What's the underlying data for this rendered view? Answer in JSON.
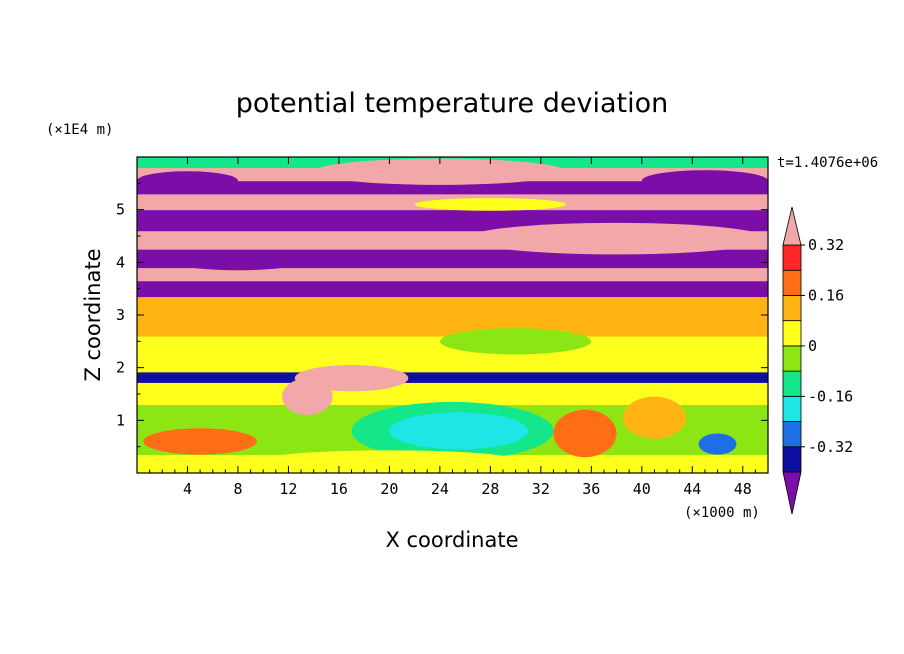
{
  "chart_data": {
    "type": "heatmap",
    "title": "potential temperature deviation",
    "xlabel": "X coordinate",
    "ylabel": "Z coordinate",
    "x_unit": "(×1000 m)",
    "y_unit": "(×1E4 m)",
    "time_label": "t=1.4076e+06",
    "xlim": [
      0,
      50
    ],
    "ylim": [
      0,
      6
    ],
    "x_ticks": [
      "4",
      "8",
      "12",
      "16",
      "20",
      "24",
      "28",
      "32",
      "36",
      "40",
      "44",
      "48"
    ],
    "y_ticks": [
      "1",
      "2",
      "3",
      "4",
      "5"
    ],
    "colorbar": {
      "labels": [
        "0.32",
        "0.16",
        "0",
        "-0.16",
        "-0.32"
      ],
      "levels": [
        -0.4,
        -0.32,
        -0.24,
        -0.16,
        -0.08,
        0.0,
        0.08,
        0.16,
        0.24,
        0.32,
        0.4
      ],
      "colors": [
        "#7b0ea8",
        "#1010a0",
        "#1e6fe6",
        "#1ee6e6",
        "#14e68a",
        "#8ce614",
        "#ffff1e",
        "#ffb414",
        "#ff6e14",
        "#ff2828",
        "#f2a8a8"
      ],
      "extend": "both"
    },
    "bands": [
      {
        "z": [
          0.0,
          0.35
        ],
        "value": 0.05
      },
      {
        "z": [
          0.35,
          1.3
        ],
        "value": -0.08
      },
      {
        "z": [
          1.3,
          1.72
        ],
        "value": 0.05
      },
      {
        "z": [
          1.72,
          1.92
        ],
        "value": -0.36
      },
      {
        "z": [
          1.92,
          2.6
        ],
        "value": 0.05
      },
      {
        "z": [
          2.6,
          3.35
        ],
        "value": 0.08
      },
      {
        "z": [
          3.35,
          3.65
        ],
        "value": -0.45
      },
      {
        "z": [
          3.65,
          3.9
        ],
        "value": 0.45
      },
      {
        "z": [
          3.9,
          4.25
        ],
        "value": -0.45
      },
      {
        "z": [
          4.25,
          4.6
        ],
        "value": 0.45
      },
      {
        "z": [
          4.6,
          5.0
        ],
        "value": -0.45
      },
      {
        "z": [
          5.0,
          5.3
        ],
        "value": 0.45
      },
      {
        "z": [
          5.3,
          5.55
        ],
        "value": -0.45
      },
      {
        "z": [
          5.55,
          5.8
        ],
        "value": 0.45
      },
      {
        "z": [
          5.8,
          6.0
        ],
        "value": -0.1
      }
    ],
    "blobs": [
      {
        "x": 25.0,
        "z": 0.8,
        "rx": 8.0,
        "rz": 0.55,
        "value": -0.1
      },
      {
        "x": 25.5,
        "z": 0.8,
        "rx": 5.5,
        "rz": 0.35,
        "value": -0.24
      },
      {
        "x": 35.5,
        "z": 0.75,
        "rx": 2.5,
        "rz": 0.45,
        "value": 0.18
      },
      {
        "x": 41.0,
        "z": 1.05,
        "rx": 2.5,
        "rz": 0.4,
        "value": 0.12
      },
      {
        "x": 5.0,
        "z": 0.6,
        "rx": 4.5,
        "rz": 0.25,
        "value": 0.18
      },
      {
        "x": 46.0,
        "z": 0.55,
        "rx": 1.5,
        "rz": 0.2,
        "value": -0.28
      },
      {
        "x": 17.0,
        "z": 1.8,
        "rx": 4.5,
        "rz": 0.25,
        "value": 0.45
      },
      {
        "x": 13.5,
        "z": 1.45,
        "rx": 2.0,
        "rz": 0.35,
        "value": 0.45
      },
      {
        "x": 24.0,
        "z": 5.72,
        "rx": 10.0,
        "rz": 0.25,
        "value": 0.45
      },
      {
        "x": 4.0,
        "z": 5.55,
        "rx": 4.0,
        "rz": 0.18,
        "value": -0.45
      },
      {
        "x": 45.0,
        "z": 5.55,
        "rx": 5.0,
        "rz": 0.2,
        "value": -0.45
      },
      {
        "x": 28.0,
        "z": 5.1,
        "rx": 6.0,
        "rz": 0.12,
        "value": 0.02
      },
      {
        "x": 38.0,
        "z": 4.45,
        "rx": 12.0,
        "rz": 0.3,
        "value": 0.45
      },
      {
        "x": 8.0,
        "z": 4.0,
        "rx": 5.0,
        "rz": 0.15,
        "value": -0.45
      },
      {
        "x": 30.0,
        "z": 2.5,
        "rx": 6.0,
        "rz": 0.25,
        "value": -0.05
      },
      {
        "x": 20.0,
        "z": 0.25,
        "rx": 10.0,
        "rz": 0.18,
        "value": 0.03
      }
    ]
  }
}
